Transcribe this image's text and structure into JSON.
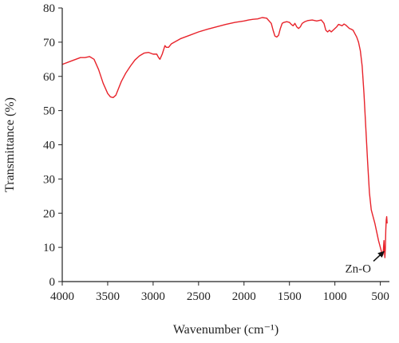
{
  "chart_data": {
    "type": "line",
    "xlabel": "Wavenumber (cm⁻¹)",
    "ylabel": "Transmittance (%)",
    "xlim": [
      4000,
      400
    ],
    "ylim": [
      0,
      80
    ],
    "x_reversed": true,
    "grid": false,
    "xticks": [
      4000,
      3500,
      3000,
      2500,
      2000,
      1500,
      1000,
      500
    ],
    "xtick_labels": [
      "4000",
      "3500",
      "3000",
      "2500",
      "2000",
      "1500",
      "1000",
      "500"
    ],
    "yticks": [
      0,
      10,
      20,
      30,
      40,
      50,
      60,
      70,
      80
    ],
    "ytick_labels": [
      "0",
      "10",
      "20",
      "30",
      "40",
      "50",
      "60",
      "70",
      "80"
    ],
    "series": [
      {
        "color": "#e8232b",
        "x": [
          4000,
          3900,
          3800,
          3750,
          3700,
          3650,
          3600,
          3550,
          3500,
          3470,
          3440,
          3410,
          3380,
          3350,
          3300,
          3250,
          3200,
          3150,
          3100,
          3050,
          3000,
          2960,
          2940,
          2925,
          2900,
          2870,
          2855,
          2830,
          2800,
          2700,
          2600,
          2500,
          2400,
          2300,
          2200,
          2100,
          2000,
          1950,
          1900,
          1850,
          1800,
          1750,
          1700,
          1680,
          1660,
          1640,
          1620,
          1600,
          1580,
          1560,
          1530,
          1500,
          1480,
          1460,
          1440,
          1420,
          1400,
          1380,
          1360,
          1330,
          1300,
          1250,
          1200,
          1150,
          1120,
          1100,
          1080,
          1060,
          1040,
          1020,
          1000,
          980,
          960,
          940,
          920,
          900,
          880,
          860,
          840,
          820,
          800,
          780,
          760,
          740,
          720,
          700,
          680,
          660,
          640,
          620,
          600,
          580,
          560,
          540,
          520,
          500,
          490,
          480,
          470,
          460,
          455,
          450,
          445,
          440,
          435,
          430,
          425
        ],
        "y": [
          63.5,
          64.5,
          65.5,
          65.5,
          65.8,
          65.0,
          62.0,
          58.0,
          55.0,
          54.0,
          53.8,
          54.5,
          56.5,
          58.5,
          61.0,
          63.0,
          64.8,
          66.0,
          66.8,
          67.0,
          66.5,
          66.5,
          65.5,
          65.0,
          66.5,
          69.0,
          68.5,
          68.5,
          69.5,
          71.0,
          72.0,
          73.0,
          73.8,
          74.5,
          75.2,
          75.8,
          76.2,
          76.5,
          76.7,
          76.8,
          77.2,
          77.0,
          75.5,
          73.5,
          71.8,
          71.5,
          72.0,
          74.0,
          75.5,
          75.8,
          76.0,
          75.8,
          75.2,
          74.8,
          75.5,
          74.5,
          74.0,
          74.5,
          75.5,
          76.0,
          76.3,
          76.5,
          76.2,
          76.5,
          75.5,
          73.5,
          73.0,
          73.5,
          73.0,
          73.5,
          74.0,
          74.5,
          75.2,
          75.0,
          74.8,
          75.3,
          75.0,
          74.5,
          74.0,
          73.8,
          73.5,
          72.5,
          71.5,
          70.0,
          67.5,
          63.0,
          55.0,
          45.0,
          35.0,
          26.0,
          21.0,
          19.0,
          17.0,
          14.5,
          12.0,
          10.0,
          9.0,
          7.5,
          8.0,
          12.0,
          9.0,
          7.0,
          9.5,
          15.0,
          18.0,
          19.0,
          17.0
        ]
      }
    ],
    "annotations": [
      {
        "text": "Zn-O",
        "x": 470,
        "y": 9,
        "arrow": true
      }
    ]
  }
}
